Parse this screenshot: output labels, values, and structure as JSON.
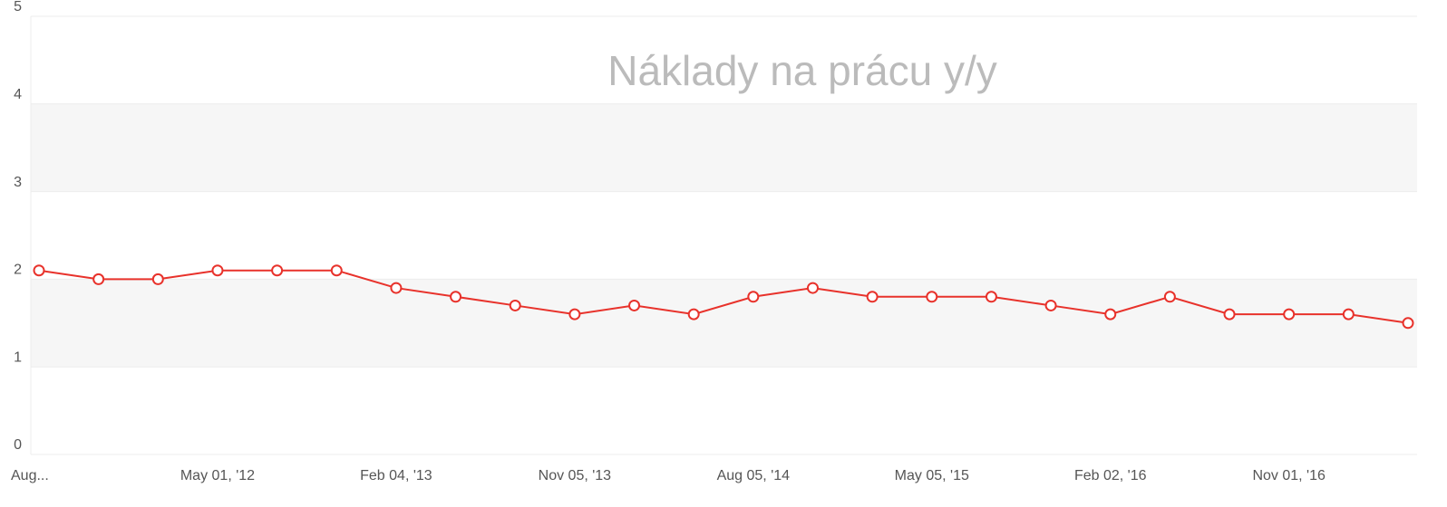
{
  "chart_data": {
    "type": "line",
    "title": "Náklady na prácu y/y",
    "categories": [
      "Aug...",
      null,
      null,
      "May 01, '12",
      null,
      null,
      "Feb 04, '13",
      null,
      null,
      "Nov 05, '13",
      null,
      null,
      "Aug 05, '14",
      null,
      null,
      "May 05, '15",
      null,
      null,
      "Feb 02, '16",
      null,
      null,
      "Nov 01, '16",
      null,
      null
    ],
    "values": [
      2.1,
      2.0,
      2.0,
      2.1,
      2.1,
      2.1,
      1.9,
      1.8,
      1.7,
      1.6,
      1.7,
      1.6,
      1.8,
      1.9,
      1.8,
      1.8,
      1.8,
      1.7,
      1.6,
      1.8,
      1.6,
      1.6,
      1.6,
      1.5
    ],
    "color": "#e8322b",
    "ylim": [
      0,
      5
    ],
    "yticks": [
      0,
      1,
      2,
      3,
      4,
      5
    ],
    "grid": true
  }
}
